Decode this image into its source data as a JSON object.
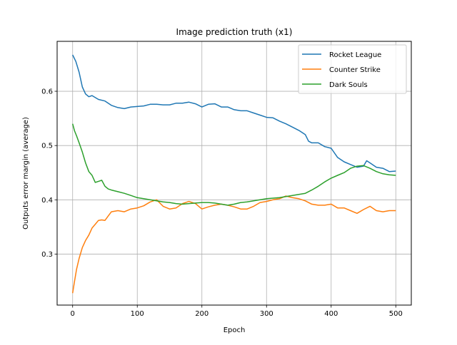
{
  "chart_data": {
    "type": "line",
    "title": "Image prediction truth (x1)",
    "xlabel": "Epoch",
    "ylabel": "Outputs error margin (average)",
    "xlim": [
      -24,
      524
    ],
    "ylim": [
      0.206,
      0.692
    ],
    "xticks": [
      0,
      100,
      200,
      300,
      400,
      500
    ],
    "yticks": [
      0.3,
      0.4,
      0.5,
      0.6
    ],
    "ytick_labels": [
      "0.3",
      "0.4",
      "0.5",
      "0.6"
    ],
    "grid": true,
    "legend_position": "upper right",
    "series": [
      {
        "name": "Rocket League",
        "color": "#1f77b4",
        "x": [
          0,
          5,
          10,
          15,
          20,
          25,
          30,
          40,
          50,
          60,
          70,
          80,
          90,
          100,
          110,
          120,
          130,
          140,
          150,
          160,
          170,
          180,
          190,
          200,
          210,
          220,
          230,
          240,
          250,
          260,
          270,
          280,
          290,
          300,
          310,
          320,
          330,
          340,
          350,
          360,
          365,
          370,
          380,
          390,
          400,
          410,
          420,
          430,
          440,
          450,
          455,
          460,
          470,
          480,
          490,
          500
        ],
        "y": [
          0.667,
          0.655,
          0.635,
          0.608,
          0.595,
          0.59,
          0.592,
          0.585,
          0.582,
          0.574,
          0.57,
          0.568,
          0.571,
          0.572,
          0.573,
          0.576,
          0.576,
          0.575,
          0.575,
          0.578,
          0.578,
          0.58,
          0.577,
          0.571,
          0.576,
          0.577,
          0.571,
          0.571,
          0.566,
          0.564,
          0.564,
          0.56,
          0.556,
          0.552,
          0.551,
          0.545,
          0.54,
          0.534,
          0.528,
          0.52,
          0.508,
          0.505,
          0.505,
          0.498,
          0.495,
          0.478,
          0.47,
          0.465,
          0.46,
          0.462,
          0.472,
          0.468,
          0.46,
          0.458,
          0.452,
          0.453
        ]
      },
      {
        "name": "Counter Strike",
        "color": "#ff7f0e",
        "x": [
          0,
          3,
          6,
          10,
          15,
          20,
          25,
          30,
          35,
          40,
          45,
          50,
          55,
          60,
          70,
          80,
          90,
          100,
          110,
          120,
          130,
          140,
          150,
          160,
          170,
          180,
          190,
          200,
          210,
          220,
          230,
          240,
          250,
          260,
          270,
          280,
          290,
          300,
          310,
          320,
          330,
          340,
          350,
          360,
          370,
          380,
          390,
          400,
          410,
          420,
          430,
          440,
          450,
          460,
          470,
          480,
          490,
          500
        ],
        "y": [
          0.228,
          0.25,
          0.272,
          0.292,
          0.312,
          0.325,
          0.335,
          0.348,
          0.355,
          0.362,
          0.363,
          0.362,
          0.37,
          0.378,
          0.38,
          0.378,
          0.383,
          0.385,
          0.389,
          0.396,
          0.4,
          0.388,
          0.383,
          0.385,
          0.393,
          0.397,
          0.393,
          0.383,
          0.387,
          0.39,
          0.392,
          0.39,
          0.387,
          0.383,
          0.383,
          0.388,
          0.395,
          0.397,
          0.4,
          0.402,
          0.407,
          0.404,
          0.402,
          0.398,
          0.392,
          0.39,
          0.39,
          0.392,
          0.385,
          0.385,
          0.38,
          0.375,
          0.382,
          0.388,
          0.38,
          0.378,
          0.38,
          0.38
        ]
      },
      {
        "name": "Dark Souls",
        "color": "#2ca02c",
        "x": [
          0,
          3,
          6,
          10,
          15,
          20,
          25,
          30,
          35,
          40,
          45,
          50,
          55,
          60,
          70,
          80,
          90,
          100,
          110,
          120,
          130,
          140,
          150,
          160,
          170,
          180,
          190,
          200,
          210,
          220,
          230,
          240,
          250,
          260,
          270,
          280,
          290,
          300,
          310,
          320,
          330,
          340,
          350,
          360,
          370,
          380,
          390,
          400,
          410,
          420,
          430,
          440,
          450,
          460,
          470,
          480,
          490,
          500
        ],
        "y": [
          0.54,
          0.527,
          0.518,
          0.505,
          0.488,
          0.468,
          0.452,
          0.445,
          0.432,
          0.434,
          0.436,
          0.425,
          0.42,
          0.418,
          0.415,
          0.412,
          0.408,
          0.404,
          0.402,
          0.4,
          0.398,
          0.396,
          0.395,
          0.393,
          0.392,
          0.393,
          0.394,
          0.395,
          0.395,
          0.394,
          0.392,
          0.39,
          0.392,
          0.395,
          0.396,
          0.398,
          0.4,
          0.402,
          0.403,
          0.404,
          0.406,
          0.408,
          0.41,
          0.412,
          0.418,
          0.425,
          0.433,
          0.44,
          0.445,
          0.45,
          0.458,
          0.462,
          0.463,
          0.458,
          0.452,
          0.448,
          0.446,
          0.445
        ]
      }
    ]
  }
}
